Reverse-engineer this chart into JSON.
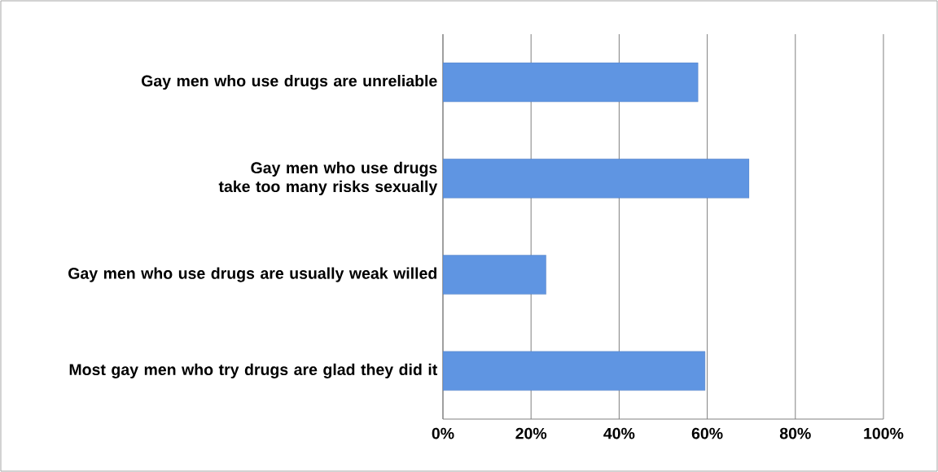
{
  "chart_data": {
    "type": "bar",
    "orientation": "horizontal",
    "categories": [
      "Gay men who use drugs are unreliable",
      "Gay men who use drugs take too many risks sexually",
      "Gay men who use drugs are usually weak willed",
      "Most gay men who try drugs are glad they did it"
    ],
    "values": [
      57.9,
      69.5,
      23.4,
      59.5
    ],
    "color": "#5f95e2",
    "xlim": [
      0,
      100
    ],
    "xticks": [
      {
        "value": 0,
        "label": "0%"
      },
      {
        "value": 20,
        "label": "20%"
      },
      {
        "value": 40,
        "label": "40%"
      },
      {
        "value": 60,
        "label": "60%"
      },
      {
        "value": 80,
        "label": "80%"
      },
      {
        "value": 100,
        "label": "100%"
      }
    ],
    "grid": "x"
  }
}
